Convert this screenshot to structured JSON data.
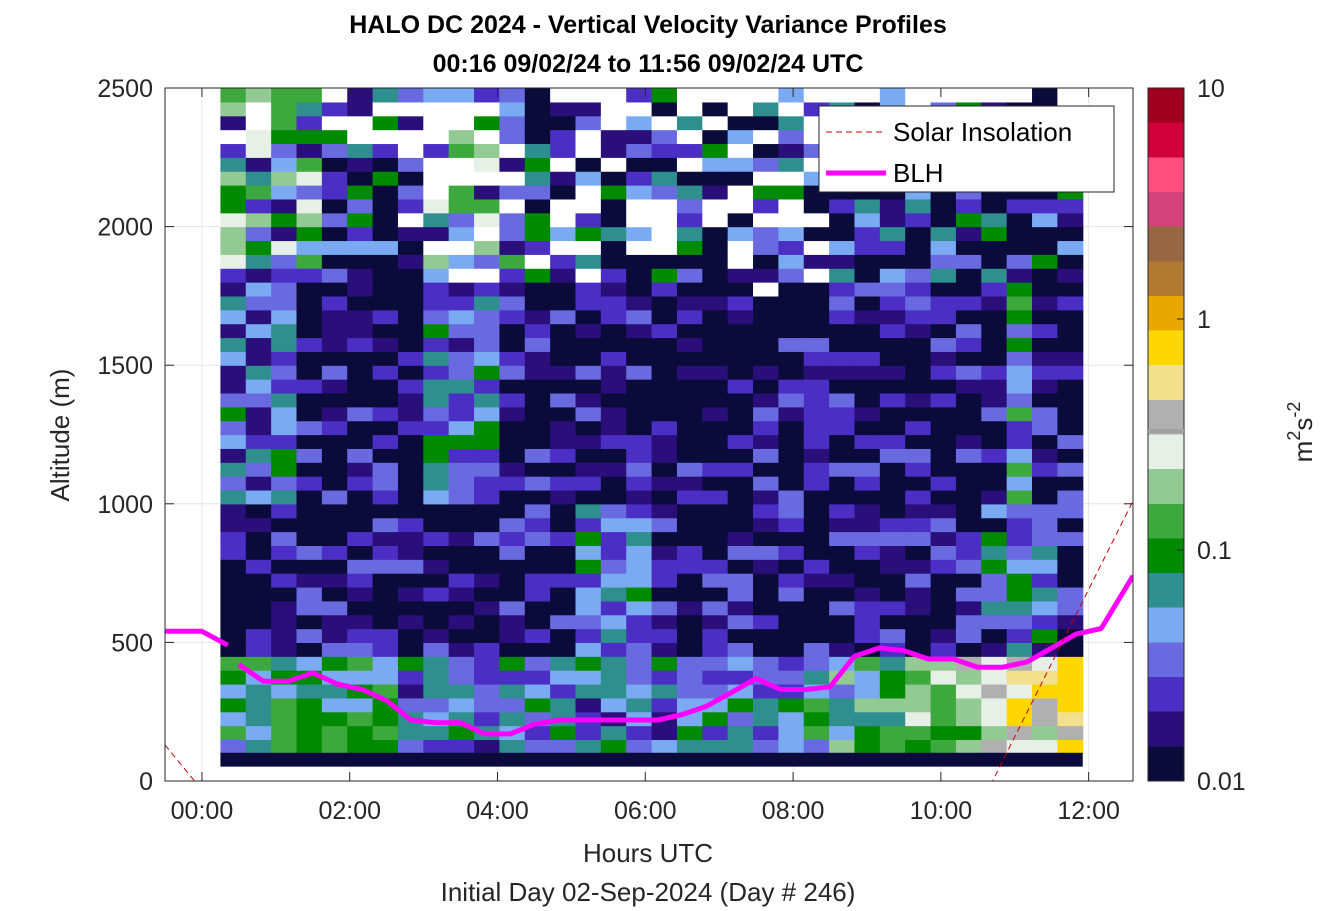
{
  "chart_data": {
    "type": "heatmap",
    "title": "HALO DC 2024 - Vertical Velocity Variance Profiles",
    "subtitle": "00:16 09/02/24 to 11:56 09/02/24  UTC",
    "xlabel": "Hours UTC",
    "footer": "Initial Day 02-Sep-2024 (Day # 246)",
    "ylabel": "Altitude (m)",
    "xlim": [
      -0.5,
      12.6
    ],
    "ylim": [
      0,
      2500
    ],
    "x_ticks": [
      0,
      2,
      4,
      6,
      8,
      10,
      12
    ],
    "x_tick_labels": [
      "00:00",
      "02:00",
      "04:00",
      "06:00",
      "08:00",
      "10:00",
      "12:00"
    ],
    "y_ticks": [
      0,
      500,
      1000,
      1500,
      2000,
      2500
    ],
    "y_tick_labels": [
      "0",
      "500",
      "1000",
      "1500",
      "2000",
      "2500"
    ],
    "grid": true,
    "colorbar": {
      "scale": "log",
      "range": [
        0.01,
        10
      ],
      "tick_labels": [
        "0.01",
        "0.1",
        "1",
        "10"
      ],
      "tick_values": [
        0.01,
        0.1,
        1,
        10
      ],
      "label_base": "m",
      "label_exp1": "2",
      "label_mid": "s",
      "label_exp2": "-2",
      "colors": [
        "#0b0b3b",
        "#2a0f7a",
        "#4b2ec4",
        "#6a6ae0",
        "#7aaaf2",
        "#2f8f8f",
        "#008a00",
        "#3da83d",
        "#93c993",
        "#e6f0e6",
        "#b0b0b0",
        "#f2e08c",
        "#ffd700",
        "#e8a800",
        "#b07830",
        "#996644",
        "#d4427a",
        "#ff4f80",
        "#d0003a",
        "#a00020"
      ]
    },
    "legend": {
      "position": "top-right",
      "entries": [
        {
          "name": "Solar Insolation",
          "color": "#cc0000",
          "style": "dashed"
        },
        {
          "name": "BLH",
          "color": "#ff00ff",
          "style": "solid"
        }
      ]
    },
    "heatmap": {
      "x_range": [
        0.25,
        11.92
      ],
      "y_range": [
        100,
        2500
      ],
      "cols": 34,
      "rows": 48,
      "missing_color": "#ffffff"
    },
    "series": [
      {
        "name": "BLH",
        "color": "#ff00ff",
        "segments": [
          {
            "x": [
              -0.5,
              0.0,
              0.35
            ],
            "y": [
              540,
              540,
              490
            ]
          },
          {
            "x": [
              0.5,
              0.83,
              1.17,
              1.5,
              1.83,
              2.17,
              2.5,
              2.83,
              3.17,
              3.5,
              3.83,
              4.17,
              4.5,
              4.83,
              5.17,
              5.5,
              5.83,
              6.17,
              6.5,
              6.83,
              7.17,
              7.5,
              7.83,
              8.17,
              8.5,
              8.83,
              9.17,
              9.5,
              9.83,
              10.17,
              10.5,
              10.83,
              11.17,
              11.5,
              11.83,
              12.17,
              12.6
            ],
            "y": [
              420,
              360,
              360,
              390,
              350,
              330,
              290,
              220,
              210,
              210,
              170,
              170,
              205,
              220,
              220,
              220,
              220,
              220,
              240,
              270,
              320,
              370,
              330,
              330,
              340,
              450,
              480,
              470,
              440,
              440,
              410,
              410,
              430,
              480,
              530,
              550,
              740
            ]
          }
        ]
      },
      {
        "name": "Solar Insolation",
        "color": "#cc0000",
        "segments": [
          {
            "x": [
              -0.5,
              -0.1,
              10.7,
              12.6
            ],
            "y": [
              130,
              0,
              0,
              1010
            ]
          }
        ]
      }
    ]
  }
}
